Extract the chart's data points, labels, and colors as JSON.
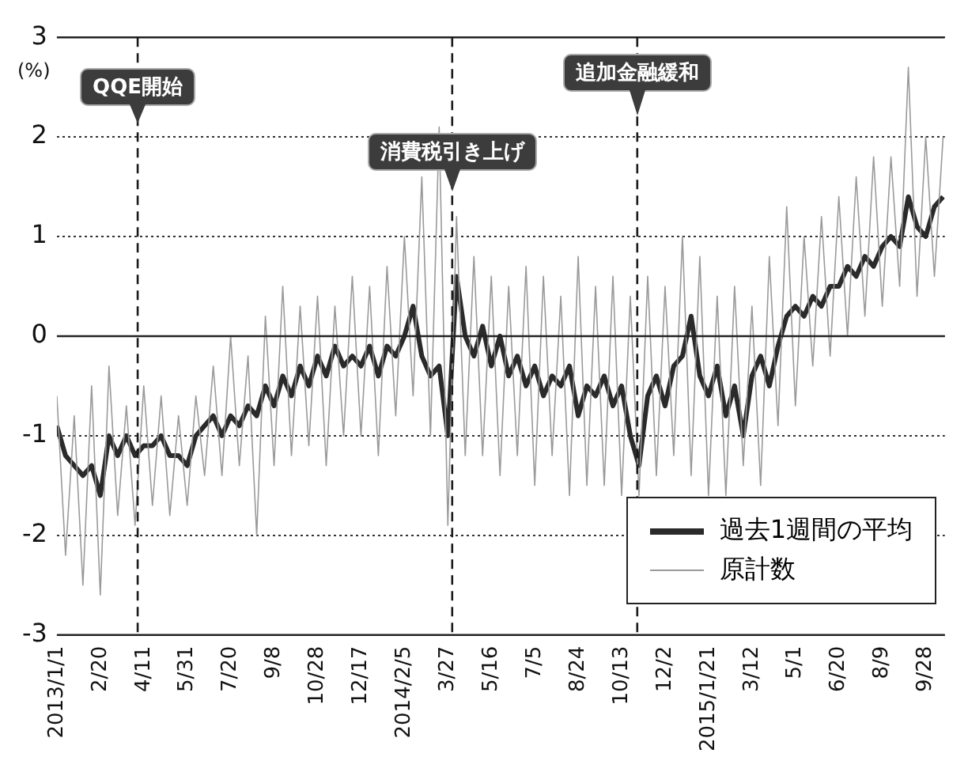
{
  "chart_data": {
    "type": "line",
    "ylabel": "(%)",
    "x": [
      "2013-01-01",
      "2013-01-11",
      "2013-01-21",
      "2013-01-31",
      "2013-02-10",
      "2013-02-20",
      "2013-03-02",
      "2013-03-12",
      "2013-03-22",
      "2013-04-01",
      "2013-04-11",
      "2013-04-21",
      "2013-05-01",
      "2013-05-11",
      "2013-05-21",
      "2013-05-31",
      "2013-06-10",
      "2013-06-20",
      "2013-06-30",
      "2013-07-10",
      "2013-07-20",
      "2013-07-30",
      "2013-08-09",
      "2013-08-19",
      "2013-08-29",
      "2013-09-08",
      "2013-09-18",
      "2013-09-28",
      "2013-10-08",
      "2013-10-18",
      "2013-10-28",
      "2013-11-07",
      "2013-11-17",
      "2013-11-27",
      "2013-12-07",
      "2013-12-17",
      "2013-12-27",
      "2014-01-06",
      "2014-01-16",
      "2014-01-26",
      "2014-02-05",
      "2014-02-15",
      "2014-02-25",
      "2014-03-07",
      "2014-03-17",
      "2014-03-27",
      "2014-04-06",
      "2014-04-16",
      "2014-04-26",
      "2014-05-06",
      "2014-05-16",
      "2014-05-26",
      "2014-06-05",
      "2014-06-15",
      "2014-06-25",
      "2014-07-05",
      "2014-07-15",
      "2014-07-25",
      "2014-08-04",
      "2014-08-14",
      "2014-08-24",
      "2014-09-03",
      "2014-09-13",
      "2014-09-23",
      "2014-10-03",
      "2014-10-13",
      "2014-10-23",
      "2014-11-02",
      "2014-11-12",
      "2014-11-22",
      "2014-12-02",
      "2014-12-12",
      "2014-12-22",
      "2015-01-01",
      "2015-01-11",
      "2015-01-21",
      "2015-01-31",
      "2015-02-10",
      "2015-02-20",
      "2015-03-02",
      "2015-03-12",
      "2015-03-22",
      "2015-04-01",
      "2015-04-11",
      "2015-04-21",
      "2015-05-01",
      "2015-05-11",
      "2015-05-21",
      "2015-05-31",
      "2015-06-10",
      "2015-06-20",
      "2015-06-30",
      "2015-07-10",
      "2015-07-20",
      "2015-07-30",
      "2015-08-09",
      "2015-08-19",
      "2015-08-29",
      "2015-09-08",
      "2015-09-18",
      "2015-09-28",
      "2015-10-08",
      "2015-10-18"
    ],
    "series": [
      {
        "name": "原計数",
        "color": "#9a9a9a",
        "values": [
          -0.6,
          -2.2,
          -0.8,
          -2.5,
          -0.5,
          -2.6,
          -0.3,
          -1.8,
          -0.7,
          -1.9,
          -0.5,
          -1.7,
          -0.6,
          -1.8,
          -0.8,
          -1.7,
          -0.6,
          -1.4,
          -0.3,
          -1.4,
          0.0,
          -1.3,
          -0.2,
          -2.0,
          0.2,
          -1.3,
          0.5,
          -1.2,
          0.3,
          -1.1,
          0.4,
          -1.3,
          0.3,
          -1.0,
          0.6,
          -1.0,
          0.5,
          -1.2,
          0.7,
          -0.8,
          1.0,
          -0.6,
          1.6,
          -1.0,
          2.1,
          -1.9,
          1.2,
          -1.2,
          0.8,
          -1.2,
          0.6,
          -1.4,
          0.5,
          -1.2,
          0.7,
          -1.5,
          0.6,
          -1.2,
          0.4,
          -1.6,
          0.8,
          -1.5,
          0.5,
          -1.5,
          0.6,
          -1.6,
          0.4,
          -1.6,
          0.6,
          -1.4,
          0.5,
          -1.2,
          1.0,
          -1.4,
          0.8,
          -1.6,
          0.4,
          -1.6,
          0.5,
          -1.3,
          0.3,
          -1.5,
          0.8,
          -0.9,
          1.3,
          -0.7,
          1.0,
          -0.3,
          1.2,
          -0.2,
          1.4,
          0.0,
          1.6,
          0.2,
          1.8,
          0.3,
          1.8,
          0.5,
          2.7,
          0.4,
          2.0,
          0.6,
          2.0
        ]
      },
      {
        "name": "過去1週間の平均",
        "color": "#2a2a2a",
        "values": [
          -0.9,
          -1.2,
          -1.3,
          -1.4,
          -1.3,
          -1.6,
          -1.0,
          -1.2,
          -1.0,
          -1.2,
          -1.1,
          -1.1,
          -1.0,
          -1.2,
          -1.2,
          -1.3,
          -1.0,
          -0.9,
          -0.8,
          -1.0,
          -0.8,
          -0.9,
          -0.7,
          -0.8,
          -0.5,
          -0.7,
          -0.4,
          -0.6,
          -0.3,
          -0.5,
          -0.2,
          -0.4,
          -0.1,
          -0.3,
          -0.2,
          -0.3,
          -0.1,
          -0.4,
          -0.1,
          -0.2,
          0.0,
          0.3,
          -0.2,
          -0.4,
          -0.3,
          -1.0,
          0.6,
          0.0,
          -0.2,
          0.1,
          -0.3,
          0.0,
          -0.4,
          -0.2,
          -0.5,
          -0.3,
          -0.6,
          -0.4,
          -0.5,
          -0.3,
          -0.8,
          -0.5,
          -0.6,
          -0.4,
          -0.7,
          -0.5,
          -1.0,
          -1.3,
          -0.6,
          -0.4,
          -0.7,
          -0.3,
          -0.2,
          0.2,
          -0.4,
          -0.6,
          -0.3,
          -0.8,
          -0.5,
          -1.0,
          -0.4,
          -0.2,
          -0.5,
          -0.1,
          0.2,
          0.3,
          0.2,
          0.4,
          0.3,
          0.5,
          0.5,
          0.7,
          0.6,
          0.8,
          0.7,
          0.9,
          1.0,
          0.9,
          1.4,
          1.1,
          1.0,
          1.3,
          1.4
        ]
      }
    ],
    "xlim": [
      "2013-01-01",
      "2015-10-20"
    ],
    "xticks": [
      {
        "value": "2013-01-01",
        "label": "2013/1/1"
      },
      {
        "value": "2013-02-20",
        "label": "2/20"
      },
      {
        "value": "2013-04-11",
        "label": "4/11"
      },
      {
        "value": "2013-05-31",
        "label": "5/31"
      },
      {
        "value": "2013-07-20",
        "label": "7/20"
      },
      {
        "value": "2013-09-08",
        "label": "9/8"
      },
      {
        "value": "2013-10-28",
        "label": "10/28"
      },
      {
        "value": "2013-12-17",
        "label": "12/17"
      },
      {
        "value": "2014-02-05",
        "label": "2014/2/5"
      },
      {
        "value": "2014-03-27",
        "label": "3/27"
      },
      {
        "value": "2014-05-16",
        "label": "5/16"
      },
      {
        "value": "2014-07-05",
        "label": "7/5"
      },
      {
        "value": "2014-08-24",
        "label": "8/24"
      },
      {
        "value": "2014-10-13",
        "label": "10/13"
      },
      {
        "value": "2014-12-02",
        "label": "12/2"
      },
      {
        "value": "2015-01-21",
        "label": "2015/1/21"
      },
      {
        "value": "2015-03-12",
        "label": "3/12"
      },
      {
        "value": "2015-05-01",
        "label": "5/1"
      },
      {
        "value": "2015-06-20",
        "label": "6/20"
      },
      {
        "value": "2015-08-09",
        "label": "8/9"
      },
      {
        "value": "2015-09-28",
        "label": "9/28"
      }
    ],
    "ylim": [
      -3,
      3
    ],
    "yticks": [
      -3,
      -2,
      -1,
      0,
      1,
      2,
      3
    ],
    "grid": "y",
    "legend": "bottom right",
    "marker": "none",
    "line_style": "solid",
    "ref_lines": [
      {
        "axis": "x",
        "value": "2013-04-04",
        "label": "QQE開始",
        "line_style": "dashed",
        "color": "#1a1a1a"
      },
      {
        "axis": "x",
        "value": "2014-04-01",
        "label": "消費税引き上げ",
        "line_style": "dashed",
        "color": "#1a1a1a"
      },
      {
        "axis": "x",
        "value": "2014-10-31",
        "label": "追加金融緩和",
        "line_style": "dashed",
        "color": "#1a1a1a"
      }
    ]
  }
}
